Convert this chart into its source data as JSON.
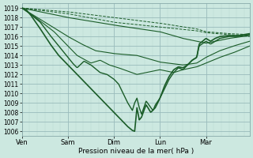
{
  "bg_color": "#cce8e0",
  "plot_bg_color": "#cce8e0",
  "grid_major_color": "#99bbbb",
  "grid_minor_color": "#b8d8d0",
  "line_color": "#1a5c28",
  "ylim": [
    1005.5,
    1019.5
  ],
  "yticks": [
    1006,
    1007,
    1008,
    1009,
    1010,
    1011,
    1012,
    1013,
    1014,
    1015,
    1016,
    1017,
    1018,
    1019
  ],
  "xlabel": "Pression niveau de la mer( hPa )",
  "xtick_labels": [
    "Ven",
    "Sam",
    "Dim",
    "Lun",
    "Mar"
  ],
  "xtick_pos": [
    0,
    1,
    2,
    3,
    4
  ],
  "xlim": [
    0,
    4.95
  ]
}
